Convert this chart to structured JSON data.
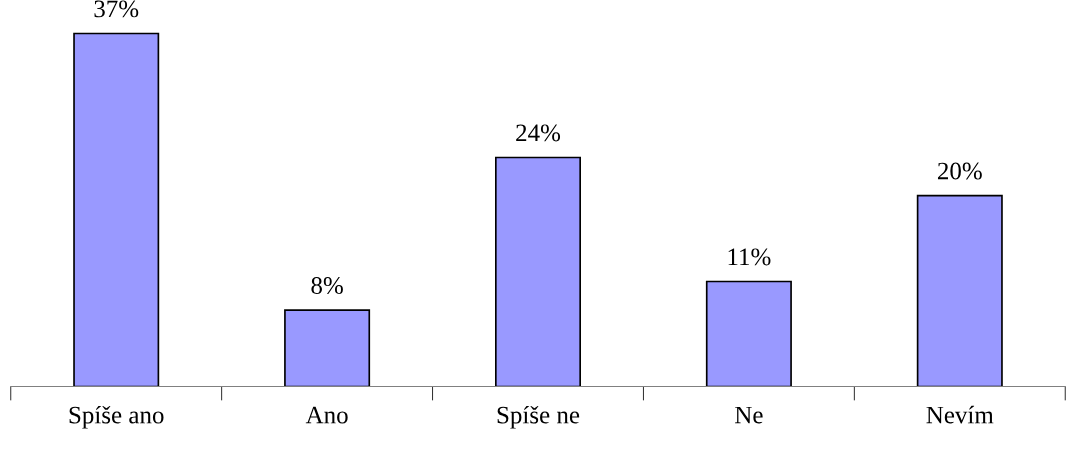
{
  "chart_data": {
    "type": "bar",
    "categories": [
      "Spíše ano",
      "Ano",
      "Spíše ne",
      "Ne",
      "Nevím"
    ],
    "values": [
      37,
      8,
      24,
      11,
      20
    ],
    "value_labels": [
      "37%",
      "8%",
      "24%",
      "11%",
      "20%"
    ],
    "color": "#9999ff"
  }
}
